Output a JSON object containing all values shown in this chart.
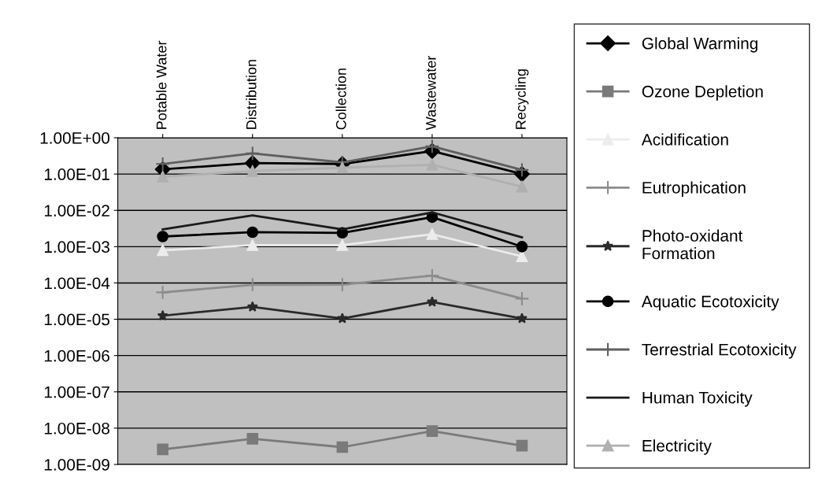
{
  "chart_data": {
    "type": "line",
    "categories": [
      "Potable Water",
      "Distribution",
      "Collection",
      "Wastewater",
      "Recycling"
    ],
    "log": "y",
    "grid": "y",
    "legend": "right",
    "ylim": [
      1e-09,
      1
    ],
    "yticks": [
      {
        "value": 1e-09,
        "label": "1.00E-09"
      },
      {
        "value": 1e-08,
        "label": "1.00E-08"
      },
      {
        "value": 1e-07,
        "label": "1.00E-07"
      },
      {
        "value": 1e-06,
        "label": "1.00E-06"
      },
      {
        "value": 1e-05,
        "label": "1.00E-05"
      },
      {
        "value": 0.0001,
        "label": "1.00E-04"
      },
      {
        "value": 0.001,
        "label": "1.00E-03"
      },
      {
        "value": 0.01,
        "label": "1.00E-02"
      },
      {
        "value": 0.1,
        "label": "1.00E-01"
      },
      {
        "value": 1,
        "label": "1.00E+00"
      }
    ],
    "series": [
      {
        "name": "Global Warming",
        "color": "#000000",
        "marker": "diamond",
        "values": [
          0.135,
          0.2,
          0.19,
          0.43,
          0.1
        ]
      },
      {
        "name": "Ozone Depletion",
        "color": "#7a7a7a",
        "marker": "square",
        "values": [
          2.6e-09,
          5.1e-09,
          3e-09,
          8.3e-09,
          3.3e-09
        ]
      },
      {
        "name": "Acidification",
        "color": "#ececec",
        "marker": "triangle",
        "values": [
          0.00079,
          0.0011,
          0.0011,
          0.0022,
          0.00054
        ]
      },
      {
        "name": "Eutrophication",
        "color": "#8c8c8c",
        "marker": "cross",
        "values": [
          5.5e-05,
          8.9e-05,
          9e-05,
          0.00016,
          3.7e-05
        ]
      },
      {
        "name": "Photo-oxidant\nFormation",
        "color": "#2a2a2a",
        "marker": "star",
        "values": [
          1.25e-05,
          2.2e-05,
          1.05e-05,
          3e-05,
          1.05e-05
        ]
      },
      {
        "name": "Aquatic Ecotoxicity",
        "color": "#000000",
        "marker": "circle",
        "values": [
          0.0019,
          0.0025,
          0.0024,
          0.0065,
          0.001
        ]
      },
      {
        "name": "Terrestrial Ecotoxicity",
        "color": "#5e5e5e",
        "marker": "cross",
        "values": [
          0.19,
          0.37,
          0.21,
          0.58,
          0.13
        ]
      },
      {
        "name": "Human Toxicity",
        "color": "#1a1a1a",
        "marker": "none",
        "values": [
          0.003,
          0.0073,
          0.003,
          0.0088,
          0.0018
        ]
      },
      {
        "name": "Electricity",
        "color": "#b0b0b0",
        "marker": "triangle",
        "values": [
          0.085,
          0.12,
          0.15,
          0.18,
          0.045
        ]
      }
    ]
  }
}
